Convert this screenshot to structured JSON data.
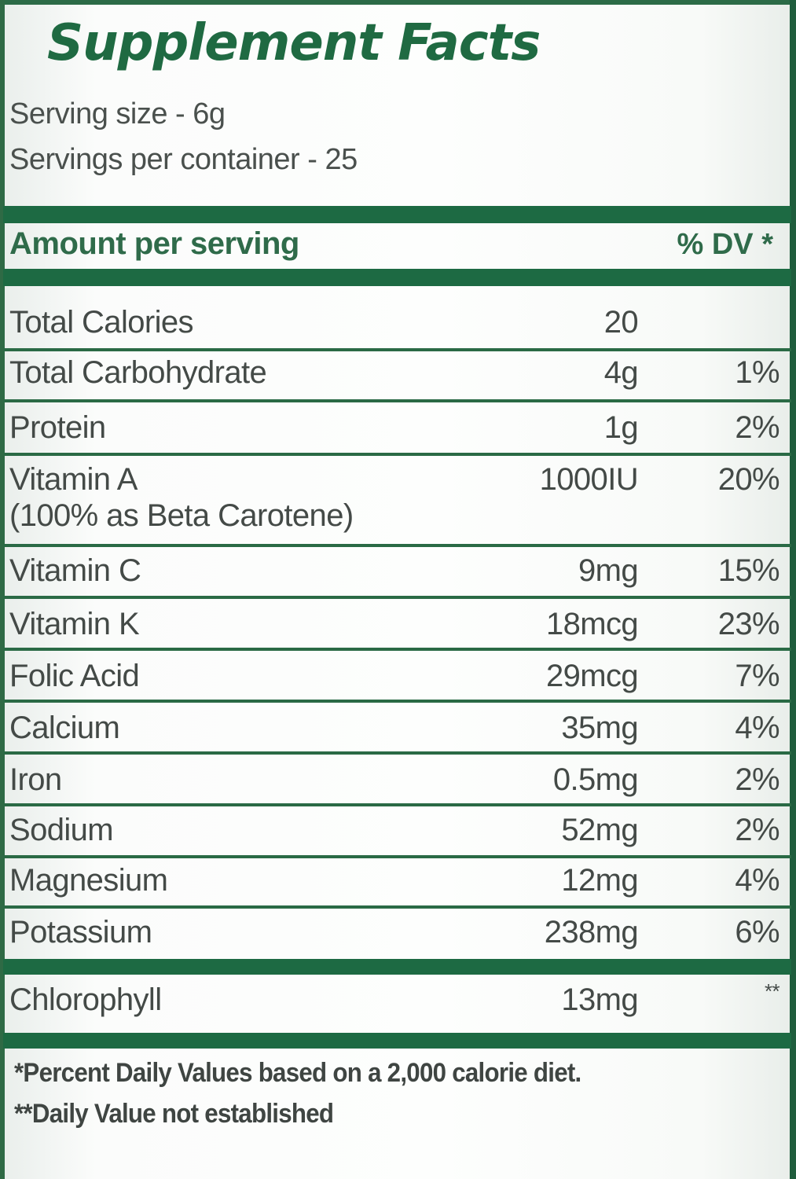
{
  "label": {
    "title": "Supplement Facts",
    "serving_size": "Serving size - 6g",
    "servings_per_container": "Servings per container - 25",
    "header_amount": "Amount per serving",
    "header_dv": "% DV *",
    "rows": [
      {
        "name": "Total Calories",
        "amount": "20",
        "dv": ""
      },
      {
        "name": "Total Carbohydrate",
        "amount": "4g",
        "dv": "1%"
      },
      {
        "name": "Protein",
        "amount": "1g",
        "dv": "2%"
      },
      {
        "name": "Vitamin A",
        "sub": "(100% as Beta Carotene)",
        "amount": "1000IU",
        "dv": "20%"
      },
      {
        "name": "Vitamin C",
        "amount": "9mg",
        "dv": "15%"
      },
      {
        "name": "Vitamin K",
        "amount": "18mcg",
        "dv": "23%"
      },
      {
        "name": "Folic Acid",
        "amount": "29mcg",
        "dv": "7%"
      },
      {
        "name": "Calcium",
        "amount": "35mg",
        "dv": "4%"
      },
      {
        "name": "Iron",
        "amount": "0.5mg",
        "dv": "2%"
      },
      {
        "name": "Sodium",
        "amount": "52mg",
        "dv": "2%"
      },
      {
        "name": "Magnesium",
        "amount": "12mg",
        "dv": "4%"
      },
      {
        "name": "Potassium",
        "amount": "238mg",
        "dv": "6%"
      }
    ],
    "other_row": {
      "name": "Chlorophyll",
      "amount": "13mg",
      "dv": "**"
    },
    "footnote_1": "*Percent Daily Values based on a 2,000 calorie diet.",
    "footnote_2": "**Daily Value not established"
  },
  "colors": {
    "brand_green": "#1d6a43",
    "text_gray": "#444a47"
  }
}
